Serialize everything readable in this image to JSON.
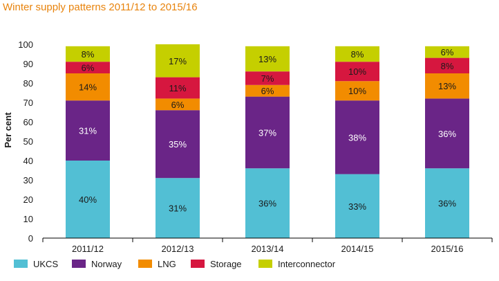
{
  "colors": {
    "title": "#e8830c",
    "UKCS": "#52bfd4",
    "Norway": "#6a2587",
    "LNG": "#f28c00",
    "Storage": "#d6173f",
    "Interconnector": "#c5cf00",
    "axis": "#000000",
    "label_dark": "#1a1a1a",
    "label_light": "#ffffff"
  },
  "chart_data": {
    "type": "bar",
    "stacked": true,
    "title": "Winter supply patterns 2011/12 to 2015/16",
    "ylabel": "Per cent",
    "xlabel": "",
    "ylim": [
      0,
      100
    ],
    "yticks": [
      0,
      10,
      20,
      30,
      40,
      50,
      60,
      70,
      80,
      90,
      100
    ],
    "grid": false,
    "legend_position": "bottom",
    "categories": [
      "2011/12",
      "2012/13",
      "2013/14",
      "2014/15",
      "2015/16"
    ],
    "series": [
      {
        "name": "UKCS",
        "values": [
          40,
          31,
          36,
          33,
          36
        ],
        "labels": [
          "40%",
          "31%",
          "36%",
          "33%",
          "36%"
        ]
      },
      {
        "name": "Norway",
        "values": [
          31,
          35,
          37,
          38,
          36
        ],
        "labels": [
          "31%",
          "35%",
          "37%",
          "38%",
          "36%"
        ]
      },
      {
        "name": "LNG",
        "values": [
          14,
          6,
          6,
          10,
          13
        ],
        "labels": [
          "14%",
          "6%",
          "6%",
          "10%",
          "13%"
        ]
      },
      {
        "name": "Storage",
        "values": [
          6,
          11,
          7,
          10,
          8
        ],
        "labels": [
          "6%",
          "11%",
          "7%",
          "10%",
          "8%"
        ]
      },
      {
        "name": "Interconnector",
        "values": [
          8,
          17,
          13,
          8,
          6
        ],
        "labels": [
          "8%",
          "17%",
          "13%",
          "8%",
          "6%"
        ]
      }
    ]
  }
}
